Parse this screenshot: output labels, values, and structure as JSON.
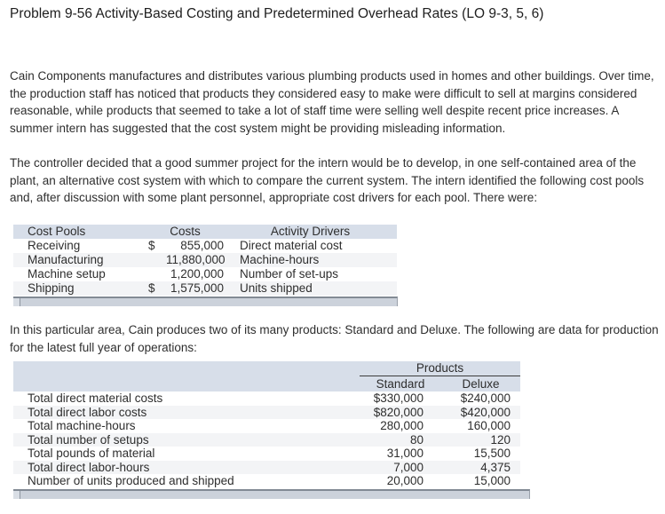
{
  "title": "Problem 9-56 Activity-Based Costing and Predetermined Overhead Rates (LO 9-3, 5, 6)",
  "paragraphs": {
    "p1": "Cain Components manufactures and distributes various plumbing products used in homes and other buildings. Over time, the production staff has noticed that products they considered easy to make were difficult to sell at margins considered reasonable, while products that seemed to take a lot of staff time were selling well despite recent price increases. A summer intern has suggested that the cost system might be providing misleading information.",
    "p2": "The controller decided that a good summer project for the intern would be to develop, in one self-contained area of the plant, an alternative cost system with which to compare the current system. The intern identified the following cost pools and, after discussion with some plant personnel, appropriate cost drivers for each pool. There were:",
    "p3": "In this particular area, Cain produces two of its many products: Standard and Deluxe. The following are data for production for the latest full year of operations:"
  },
  "cost_pools_table": {
    "col_headers": {
      "pools": "Cost Pools",
      "costs": "Costs",
      "drivers": "Activity Drivers"
    },
    "rows": [
      {
        "pool": "Receiving",
        "currency": "$",
        "amount": "855,000",
        "driver": "Direct material cost"
      },
      {
        "pool": "Manufacturing",
        "currency": "",
        "amount": "11,880,000",
        "driver": "Machine-hours"
      },
      {
        "pool": "Machine setup",
        "currency": "",
        "amount": "1,200,000",
        "driver": "Number of set-ups"
      },
      {
        "pool": "Shipping",
        "currency": "$",
        "amount": "1,575,000",
        "driver": "Units shipped"
      }
    ]
  },
  "products_table": {
    "group_header": "Products",
    "col_headers": {
      "standard": "Standard",
      "deluxe": "Deluxe"
    },
    "rows": [
      {
        "label": "Total direct material costs",
        "standard": "$330,000",
        "deluxe": "$240,000"
      },
      {
        "label": "Total direct labor costs",
        "standard": "$820,000",
        "deluxe": "$420,000"
      },
      {
        "label": "Total machine-hours",
        "standard": "280,000",
        "deluxe": "160,000"
      },
      {
        "label": "Total number of setups",
        "standard": "80",
        "deluxe": "120"
      },
      {
        "label": "Total pounds of material",
        "standard": "31,000",
        "deluxe": "15,500"
      },
      {
        "label": "Total direct labor-hours",
        "standard": "7,000",
        "deluxe": "4,375"
      },
      {
        "label": "Number of units produced and shipped",
        "standard": "20,000",
        "deluxe": "15,000"
      }
    ]
  },
  "colors": {
    "table_header_bg": "#d7dee9",
    "table_alt_row_bg": "#f3f4f6",
    "scrollbar_track": "#ccd2db",
    "scrollbar_border": "#828a94",
    "scrollbar_thumb": "#d9dee5",
    "text_color": "#2e2e2e"
  }
}
